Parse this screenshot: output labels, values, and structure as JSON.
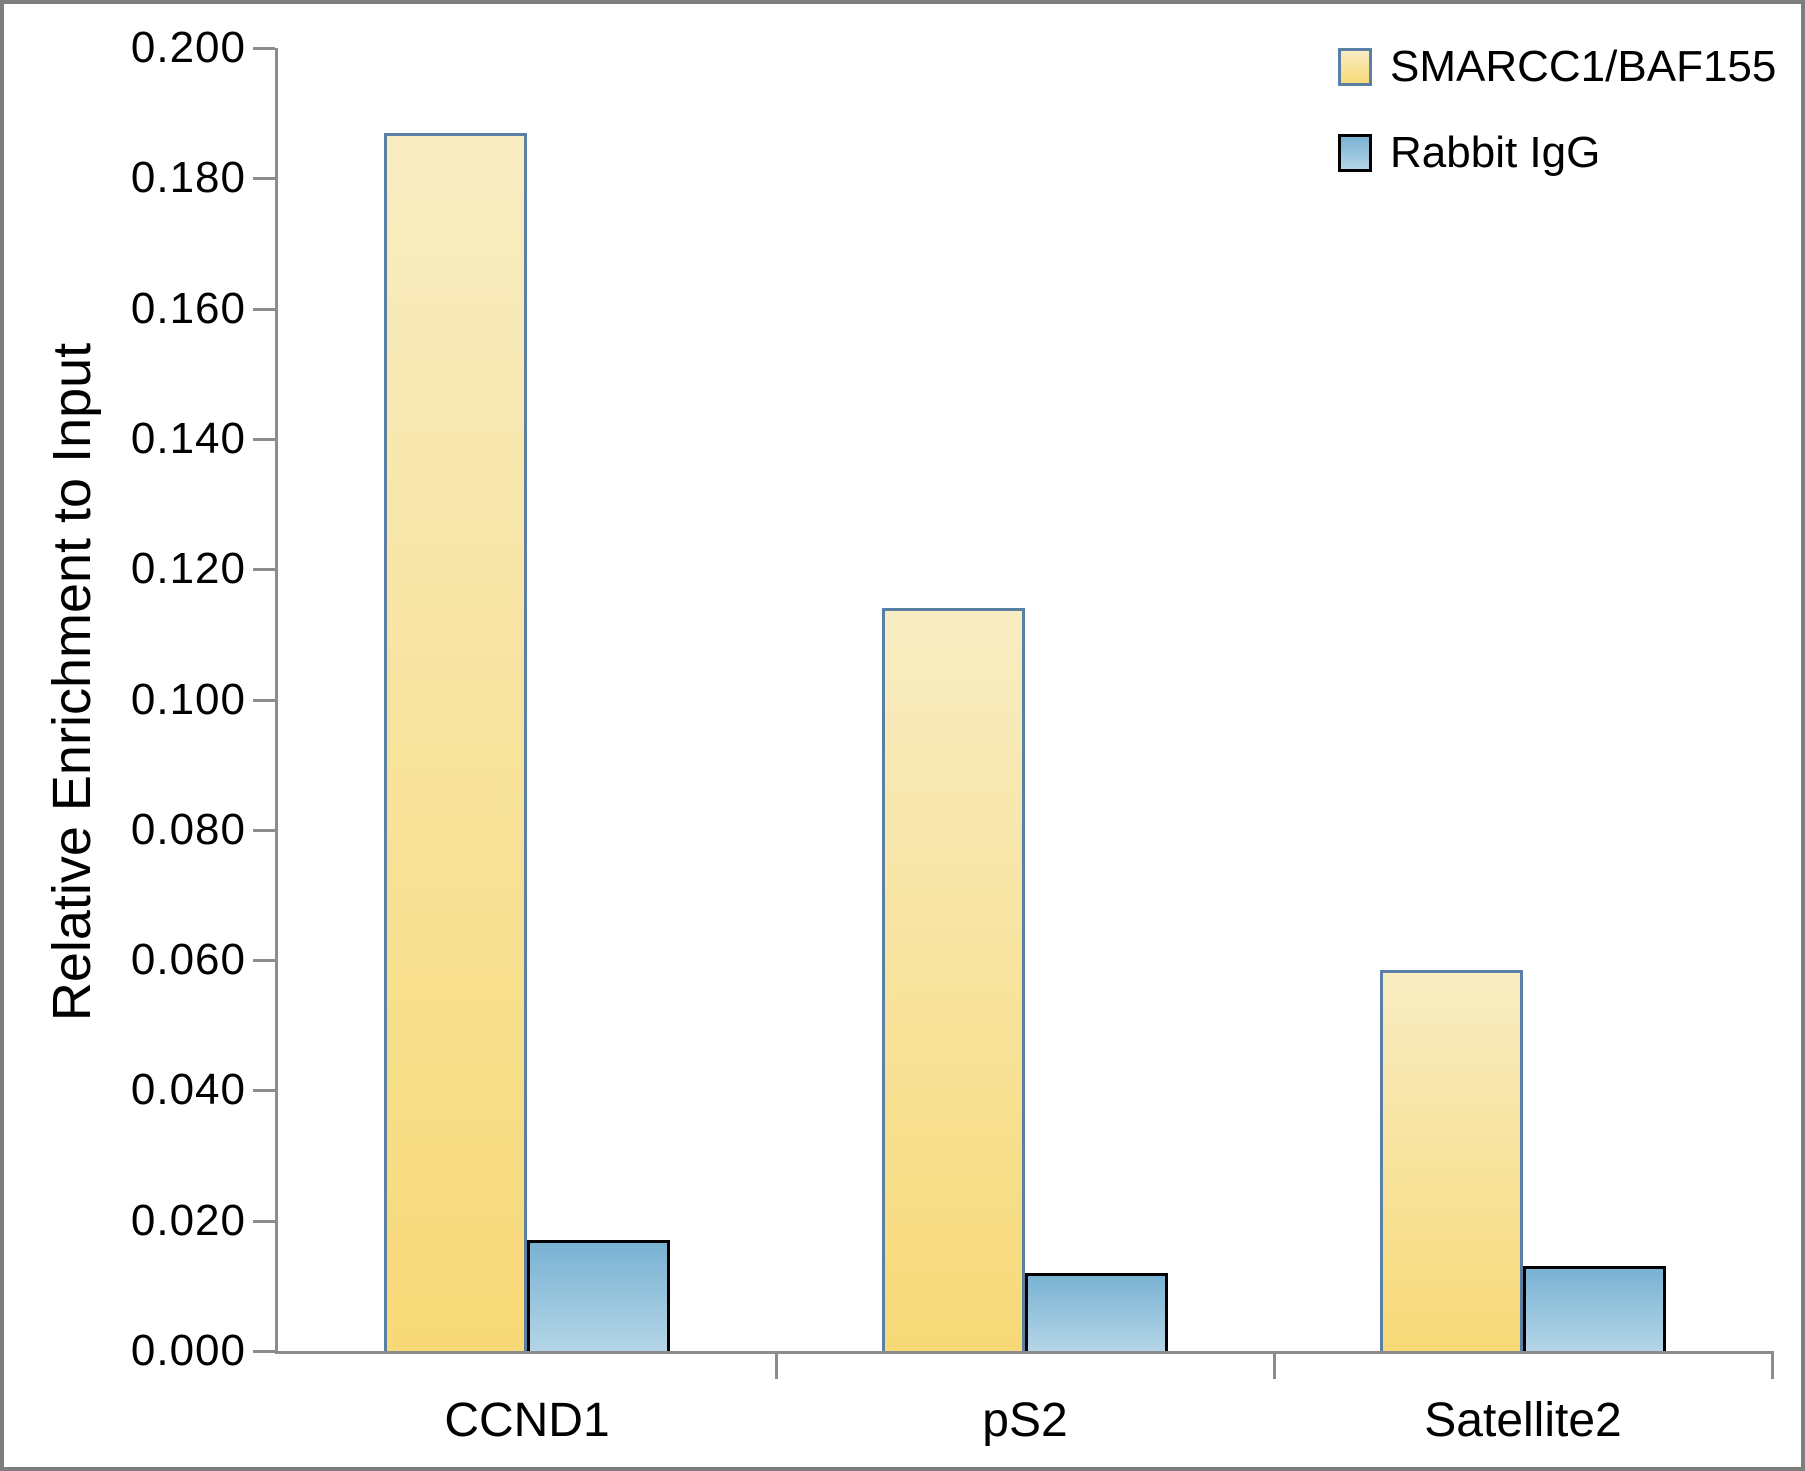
{
  "figure": {
    "background": "#FFFFFF",
    "border_color": "#7E7E7E"
  },
  "chart_data": {
    "type": "bar",
    "title": "",
    "ylabel": "Relative Enrichment to Input",
    "xlabel": "",
    "categories": [
      "CCND1",
      "pS2",
      "Satellite2"
    ],
    "series": [
      {
        "name": "SMARCC1/BAF155",
        "values": [
          0.187,
          0.114,
          0.0585
        ],
        "fill_top": "#F8EDC3",
        "fill_bottom": "#F7D977",
        "border_color": "#5B80A5"
      },
      {
        "name": "Rabbit IgG",
        "values": [
          0.017,
          0.012,
          0.013
        ],
        "fill_top": "#79B2D3",
        "fill_bottom": "#B4D5E7",
        "border_color": "#000000"
      }
    ],
    "ylim": [
      0,
      0.2
    ],
    "ytick_step": 0.02,
    "ytick_format_decimals": 3,
    "ytick_labels": [
      "0.000",
      "0.020",
      "0.040",
      "0.060",
      "0.080",
      "0.100",
      "0.120",
      "0.140",
      "0.160",
      "0.180",
      "0.200"
    ],
    "grid": false,
    "legend_position": "top-right",
    "axis_color": "#8C8C8C",
    "text_color": "#000000"
  }
}
